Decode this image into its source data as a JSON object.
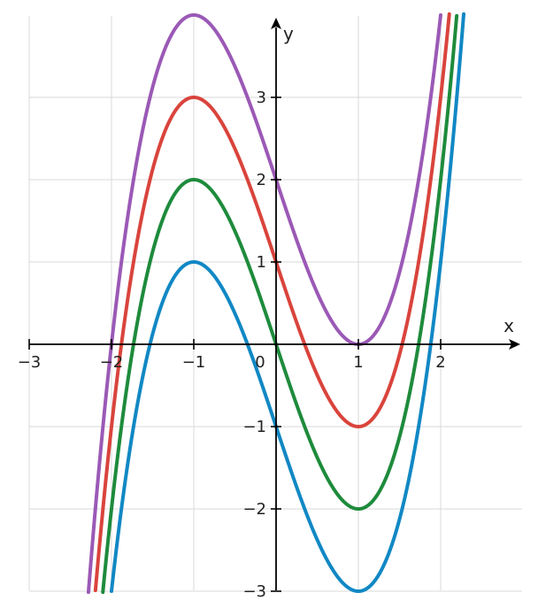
{
  "chart_data": {
    "type": "line",
    "xlabel": "x",
    "ylabel": "y",
    "xlim": [
      -3,
      2.95
    ],
    "ylim": [
      -3,
      3.9
    ],
    "grid": true,
    "legend": "none",
    "x_ticks": [
      {
        "value": -3,
        "label": "−3"
      },
      {
        "value": -2,
        "label": "−2"
      },
      {
        "value": -1,
        "label": "−1"
      },
      {
        "value": 1,
        "label": "1"
      },
      {
        "value": 2,
        "label": "2"
      }
    ],
    "y_ticks": [
      {
        "value": -3,
        "label": "−3"
      },
      {
        "value": -2,
        "label": "−2"
      },
      {
        "value": -1,
        "label": "−1"
      },
      {
        "value": 1,
        "label": "1"
      },
      {
        "value": 2,
        "label": "2"
      },
      {
        "value": 3,
        "label": "3"
      }
    ],
    "origin_label": "0",
    "curve_shape": {
      "x3_coef": 1,
      "x2_coef": 0,
      "x_coef": -3
    },
    "series": [
      {
        "constant": 2,
        "color": "#9b59b6"
      },
      {
        "constant": 1,
        "color": "#d9443c"
      },
      {
        "constant": 0,
        "color": "#1e8b3c"
      },
      {
        "constant": -1,
        "color": "#1188c4"
      }
    ]
  }
}
